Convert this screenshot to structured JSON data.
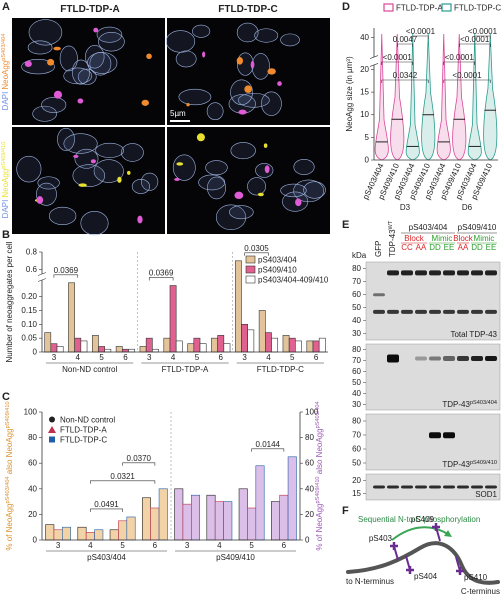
{
  "figure": {
    "panel_letters": [
      "A",
      "B",
      "C",
      "D",
      "E",
      "F"
    ],
    "A": {
      "columns": [
        "FTLD-TDP-A",
        "FTLD-TDP-C"
      ],
      "row_labels": [
        {
          "dapi": "DAPI",
          "neo": "NeoAgg",
          "sup": "pS403/404"
        },
        {
          "dapi": "DAPI",
          "neo": "NeoAgg",
          "sup": "pS409/410"
        }
      ],
      "scale_bar": "5µm"
    },
    "E": {
      "kda": "kDa",
      "lanes": [
        "GFP",
        {
          "text": "TDP-43",
          "sup": "WT"
        }
      ],
      "header_groups": [
        {
          "name": "pS403/404",
          "subgroups": [
            {
              "name": "Block",
              "color": "#d62728",
              "lanes": [
                "CC",
                "AA"
              ]
            },
            {
              "name": "Mimic",
              "color": "#2ca02c",
              "lanes": [
                "DD",
                "EE"
              ]
            }
          ]
        },
        {
          "name": "pS409/410",
          "subgroups": [
            {
              "name": "Block",
              "color": "#d62728",
              "lanes": [
                "AA"
              ]
            },
            {
              "name": "Mimic",
              "color": "#2ca02c",
              "lanes": [
                "DD",
                "EE"
              ]
            }
          ]
        }
      ],
      "blots": [
        {
          "label": "Total TDP-43",
          "markers": [
            80,
            70,
            60,
            50,
            40,
            30
          ]
        },
        {
          "label": {
            "text": "TDP-43",
            "sup": "pS403/404"
          },
          "markers": [
            80,
            70,
            60,
            50,
            40,
            30
          ]
        },
        {
          "label": {
            "text": "TDP-43",
            "sup": "pS409/410"
          },
          "markers": [
            80,
            70,
            60,
            50
          ]
        },
        {
          "label": "SOD1",
          "markers": [
            20,
            15
          ]
        }
      ]
    },
    "F": {
      "title": "Sequential N-to-C phosphorylation",
      "sites": [
        "pS403",
        "pS404",
        "pS409",
        "pS410"
      ],
      "n_end": "to N-terminus",
      "c_end": "C-terminus"
    }
  },
  "chart_data": [
    {
      "type": "bar",
      "ylabel": "Number of neoaggregates per cell",
      "groups": [
        "Non-ND control",
        "FTLD-TDP-A",
        "FTLD-TDP-C"
      ],
      "categories": [
        "3",
        "4",
        "5",
        "6",
        "3",
        "4",
        "5",
        "6",
        "3",
        "4",
        "5",
        "6"
      ],
      "series": [
        {
          "name": "pS403/404",
          "color": "#e3c39a",
          "values": [
            0.07,
            0.25,
            0.06,
            0.02,
            0.02,
            0.05,
            0.03,
            0.05,
            0.7,
            0.15,
            0.06,
            0.04
          ]
        },
        {
          "name": "pS409/410",
          "color": "#e0608f",
          "values": [
            0.03,
            0.05,
            0.02,
            0.01,
            0.05,
            0.24,
            0.05,
            0.06,
            0.1,
            0.07,
            0.05,
            0.04
          ]
        },
        {
          "name": "pS403/404-409/410",
          "color": "#ffffff",
          "values": [
            0.02,
            0.04,
            0.01,
            0.01,
            0.01,
            0.04,
            0.03,
            0.03,
            0.08,
            0.05,
            0.04,
            0.05
          ]
        }
      ],
      "ylim": [
        0,
        0.8
      ],
      "axis_break": [
        0.26,
        0.55
      ],
      "yticks": [
        0,
        0.05,
        {
          "value": 0.1,
          "label": "0.10"
        },
        0.15,
        {
          "value": 0.2,
          "label": "0.20"
        },
        0.6,
        0.8
      ],
      "legend": "upper right",
      "annotations": [
        {
          "text": "0.0369",
          "pair": [
            0,
            1
          ]
        },
        {
          "text": "0.0369",
          "pair": [
            4,
            5
          ]
        },
        {
          "text": "0.0305",
          "pair": [
            8,
            9
          ]
        }
      ]
    },
    {
      "type": "bar",
      "ylabel": [
        "% of NeoAgg",
        "pS403/404",
        " also NeoAgg",
        "pS409/410"
      ],
      "ylabel_color": "#d9902a",
      "y2label": [
        "% of NeoAgg",
        "pS409/410",
        " also NeoAgg",
        "pS403/404"
      ],
      "y2label_color": "#9b59b6",
      "groups": [
        "pS403/404",
        "pS409/410"
      ],
      "group_colors": [
        "#f2d3a8",
        "#dcbfe8"
      ],
      "categories": [
        "3",
        "4",
        "5",
        "6",
        "3",
        "4",
        "5",
        "6"
      ],
      "series": [
        {
          "name": "Non-ND control",
          "color": "#222222",
          "marker": "circle",
          "values": [
            12,
            10,
            8,
            33,
            40,
            35,
            40,
            30
          ]
        },
        {
          "name": "FTLD-TDP-A",
          "color": "#c0304a",
          "marker": "triangle",
          "values": [
            8,
            6,
            15,
            25,
            28,
            30,
            25,
            35
          ]
        },
        {
          "name": "FTLD-TDP-C",
          "color": "#1f5fa8",
          "marker": "square",
          "values": [
            10,
            8,
            18,
            40,
            35,
            30,
            58,
            65
          ]
        }
      ],
      "ylim": [
        0,
        100
      ],
      "yticks": [
        0,
        20,
        40,
        60,
        80,
        100
      ],
      "y2lim": [
        0,
        100
      ],
      "y2ticks": [
        0,
        20,
        40,
        60,
        80,
        100
      ],
      "legend": "upper left",
      "annotations": [
        {
          "text": "0.0491",
          "pair": [
            1,
            2
          ]
        },
        {
          "text": "0.0321",
          "pair": [
            1,
            3
          ]
        },
        {
          "text": "0.0370",
          "pair": [
            2,
            3
          ]
        },
        {
          "text": "0.0144",
          "pair": [
            6,
            7
          ]
        }
      ]
    },
    {
      "type": "violin",
      "ylabel": "NeoAgg size (in µm³)",
      "groups": [
        "D3",
        "D6"
      ],
      "categories": [
        "pS403/404",
        "pS409/410",
        "pS403/404",
        "pS409/410",
        "pS403/404",
        "pS409/410",
        "pS403/404",
        "pS409/410"
      ],
      "series": [
        {
          "name": "FTLD-TDP-A",
          "color": "#d9479a",
          "values": [
            4,
            9,
            null,
            null,
            4,
            9,
            null,
            null
          ]
        },
        {
          "name": "FTLD-TDP-C",
          "color": "#2a9d8f",
          "values": [
            null,
            null,
            3,
            10,
            null,
            null,
            3,
            11
          ]
        }
      ],
      "ylim": [
        0,
        42
      ],
      "axis_break": [
        21,
        36
      ],
      "yticks": [
        0,
        5,
        10,
        15,
        20,
        40
      ],
      "legend": "top",
      "annotations": [
        {
          "text": "0.0342",
          "pair": [
            0,
            3
          ]
        },
        {
          "text": "<0.0001",
          "pair": [
            0,
            2
          ]
        },
        {
          "text": "0.0047",
          "pair": [
            1,
            2
          ]
        },
        {
          "text": "<0.0001",
          "pair": [
            2,
            3
          ]
        },
        {
          "text": "<0.0001",
          "pair": [
            4,
            7
          ]
        },
        {
          "text": "<0.0001",
          "pair": [
            4,
            6
          ]
        },
        {
          "text": "<0.0001",
          "pair": [
            5,
            7
          ]
        },
        {
          "text": "<0.0001",
          "pair": [
            6,
            7
          ]
        }
      ]
    }
  ]
}
